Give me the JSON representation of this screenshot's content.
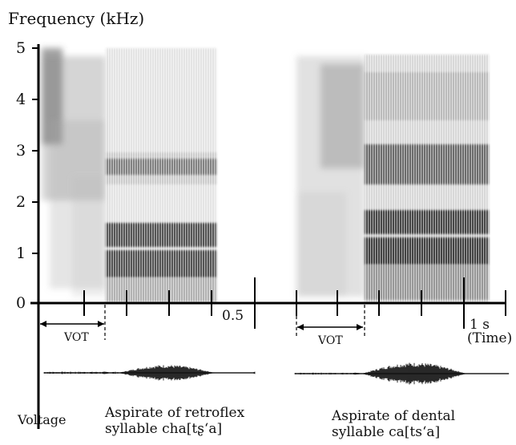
{
  "title": "Frequency (kHz)",
  "y_ticks": [
    "0",
    "1",
    "2",
    "3",
    "4",
    "5"
  ],
  "x_labels": {
    "mid": "0.5",
    "end": "1 s",
    "unit": "(Time)"
  },
  "vot_label": "VOT",
  "voltage_label": "Voltage",
  "captions": {
    "left_line1": "Aspirate of retroflex",
    "left_line2": "syllable cha[tʂʻa]",
    "right_line1": "Aspirate of dental",
    "right_line2": "syllable ca[tsʻa]"
  },
  "spectrograms": [
    {
      "name": "retroflex",
      "formants_khz": [
        0.8,
        1.3,
        2.6
      ],
      "aspiration_khz": 4.0
    },
    {
      "name": "dental",
      "formants_khz": [
        1.0,
        1.5,
        2.7
      ],
      "aspiration_khz": 4.1
    }
  ]
}
